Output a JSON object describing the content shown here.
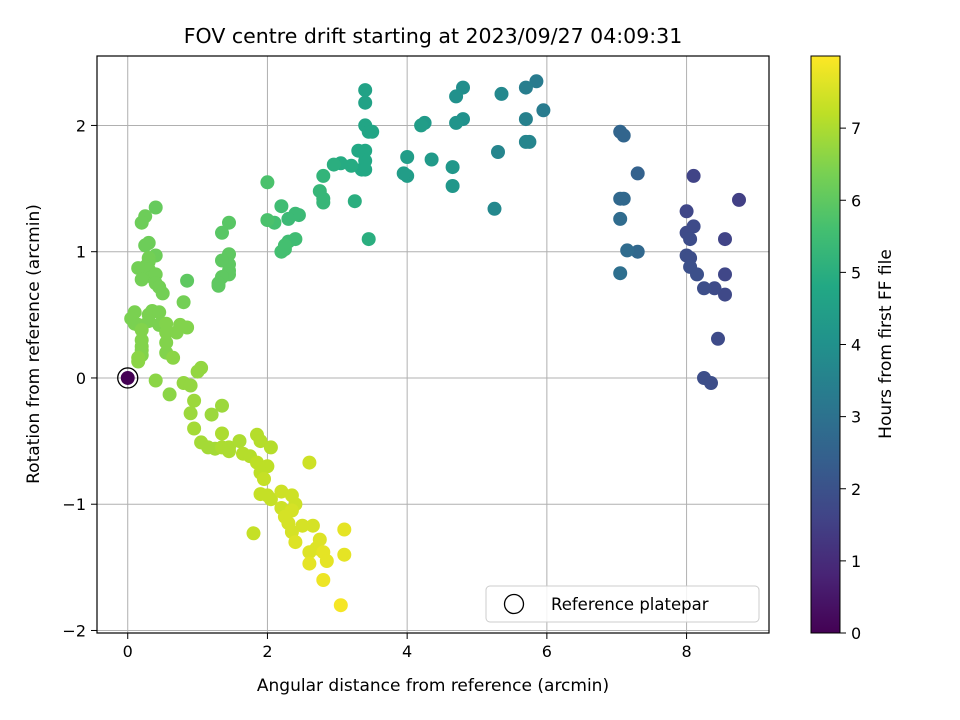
{
  "chart_data": {
    "type": "scatter",
    "title": "FOV centre drift starting at 2023/09/27 04:09:31",
    "xlabel": "Angular distance from reference (arcmin)",
    "ylabel": "Rotation from reference (arcmin)",
    "xlim": [
      -0.44,
      9.18
    ],
    "ylim": [
      -2.02,
      2.55
    ],
    "xticks": [
      {
        "value": 0,
        "label": "0"
      },
      {
        "value": 2,
        "label": "2"
      },
      {
        "value": 4,
        "label": "4"
      },
      {
        "value": 6,
        "label": "6"
      },
      {
        "value": 8,
        "label": "8"
      }
    ],
    "yticks": [
      {
        "value": 2,
        "label": "2"
      },
      {
        "value": 1,
        "label": "1"
      },
      {
        "value": 0,
        "label": "0"
      },
      {
        "value": -1,
        "label": "−1"
      },
      {
        "value": -2,
        "label": "−2"
      }
    ],
    "grid": true,
    "colormap": "viridis",
    "colorbar": {
      "label": "Hours from first FF file",
      "range": [
        0,
        8.0
      ],
      "ticks": [
        {
          "value": 0,
          "label": "0"
        },
        {
          "value": 1,
          "label": "1"
        },
        {
          "value": 2,
          "label": "2"
        },
        {
          "value": 3,
          "label": "3"
        },
        {
          "value": 4,
          "label": "4"
        },
        {
          "value": 5,
          "label": "5"
        },
        {
          "value": 6,
          "label": "6"
        },
        {
          "value": 7,
          "label": "7"
        }
      ]
    },
    "reference_point": {
      "x": 0,
      "y": 0,
      "label": "Reference platepar"
    },
    "legend": {
      "position": "lower-right",
      "entries": [
        "Reference platepar"
      ]
    },
    "points": [
      [
        0,
        0,
        0.0
      ],
      [
        8.75,
        1.41,
        1.5
      ],
      [
        8.1,
        1.6,
        1.6
      ],
      [
        8.0,
        1.32,
        1.7
      ],
      [
        8.1,
        1.2,
        1.8
      ],
      [
        8.0,
        1.15,
        1.8
      ],
      [
        8.05,
        1.1,
        1.85
      ],
      [
        8.55,
        1.1,
        1.6
      ],
      [
        8.0,
        0.97,
        1.9
      ],
      [
        8.05,
        0.95,
        1.9
      ],
      [
        8.05,
        0.88,
        1.95
      ],
      [
        8.15,
        0.82,
        1.95
      ],
      [
        8.55,
        0.82,
        1.7
      ],
      [
        8.25,
        0.71,
        1.9
      ],
      [
        8.4,
        0.71,
        1.8
      ],
      [
        8.55,
        0.66,
        1.75
      ],
      [
        8.45,
        0.31,
        1.8
      ],
      [
        8.25,
        0.0,
        1.9
      ],
      [
        8.35,
        -0.04,
        1.9
      ],
      [
        7.05,
        1.95,
        2.6
      ],
      [
        7.1,
        1.92,
        2.6
      ],
      [
        7.05,
        1.42,
        2.7
      ],
      [
        7.1,
        1.42,
        2.7
      ],
      [
        7.3,
        1.62,
        2.5
      ],
      [
        7.05,
        1.26,
        2.8
      ],
      [
        7.15,
        1.01,
        2.8
      ],
      [
        7.3,
        1.0,
        2.7
      ],
      [
        7.05,
        0.83,
        2.9
      ],
      [
        5.85,
        2.35,
        3.3
      ],
      [
        5.7,
        2.3,
        3.4
      ],
      [
        5.95,
        2.12,
        3.3
      ],
      [
        5.7,
        2.05,
        3.5
      ],
      [
        5.7,
        1.87,
        3.6
      ],
      [
        5.75,
        1.87,
        3.6
      ],
      [
        5.3,
        1.79,
        3.6
      ],
      [
        5.35,
        2.25,
        3.7
      ],
      [
        5.25,
        1.34,
        3.7
      ],
      [
        4.8,
        2.3,
        3.9
      ],
      [
        4.7,
        2.23,
        4.0
      ],
      [
        4.8,
        2.05,
        4.0
      ],
      [
        4.7,
        2.02,
        4.1
      ],
      [
        4.65,
        1.67,
        4.2
      ],
      [
        4.65,
        1.52,
        4.2
      ],
      [
        4.35,
        1.73,
        4.3
      ],
      [
        4.25,
        2.02,
        4.3
      ],
      [
        4.2,
        2.0,
        4.4
      ],
      [
        4.0,
        1.75,
        4.4
      ],
      [
        4.0,
        1.6,
        4.4
      ],
      [
        3.95,
        1.62,
        4.4
      ],
      [
        3.4,
        2.28,
        4.6
      ],
      [
        3.4,
        2.18,
        4.6
      ],
      [
        3.4,
        2.0,
        4.7
      ],
      [
        3.45,
        1.95,
        4.7
      ],
      [
        3.5,
        1.95,
        4.7
      ],
      [
        3.4,
        1.8,
        4.8
      ],
      [
        3.4,
        1.72,
        4.8
      ],
      [
        3.3,
        1.8,
        4.8
      ],
      [
        3.35,
        1.65,
        4.8
      ],
      [
        3.4,
        1.65,
        4.8
      ],
      [
        3.2,
        1.68,
        4.9
      ],
      [
        3.05,
        1.7,
        4.9
      ],
      [
        2.95,
        1.69,
        5.0
      ],
      [
        3.25,
        1.4,
        5.0
      ],
      [
        3.45,
        1.1,
        5.0
      ],
      [
        2.8,
        1.6,
        5.2
      ],
      [
        2.75,
        1.48,
        5.3
      ],
      [
        2.8,
        1.42,
        5.3
      ],
      [
        2.8,
        1.39,
        5.3
      ],
      [
        2.45,
        1.29,
        5.4
      ],
      [
        2.4,
        1.3,
        5.4
      ],
      [
        2.3,
        1.26,
        5.4
      ],
      [
        2.2,
        1.36,
        5.5
      ],
      [
        2.4,
        1.1,
        5.5
      ],
      [
        2.3,
        1.08,
        5.5
      ],
      [
        2.25,
        1.05,
        5.6
      ],
      [
        2.25,
        1.02,
        5.6
      ],
      [
        2.2,
        1.0,
        5.6
      ],
      [
        2.1,
        1.23,
        5.6
      ],
      [
        2.0,
        1.25,
        5.7
      ],
      [
        2.0,
        1.55,
        5.7
      ],
      [
        1.45,
        1.23,
        5.9
      ],
      [
        1.35,
        1.15,
        5.9
      ],
      [
        1.45,
        0.98,
        6.0
      ],
      [
        1.45,
        0.9,
        6.0
      ],
      [
        1.35,
        0.93,
        6.0
      ],
      [
        1.45,
        0.85,
        6.0
      ],
      [
        1.45,
        0.82,
        6.0
      ],
      [
        1.35,
        0.8,
        6.0
      ],
      [
        1.3,
        0.75,
        6.0
      ],
      [
        1.3,
        0.73,
        6.0
      ],
      [
        0.85,
        0.77,
        6.0
      ],
      [
        0.4,
        1.35,
        6.1
      ],
      [
        0.25,
        1.28,
        6.2
      ],
      [
        0.2,
        1.23,
        6.2
      ],
      [
        0.3,
        1.07,
        6.2
      ],
      [
        0.25,
        1.05,
        6.2
      ],
      [
        0.4,
        0.97,
        6.2
      ],
      [
        0.3,
        0.95,
        6.3
      ],
      [
        0.3,
        0.92,
        6.3
      ],
      [
        0.25,
        0.88,
        6.3
      ],
      [
        0.3,
        0.86,
        6.3
      ],
      [
        0.15,
        0.87,
        6.3
      ],
      [
        0.35,
        0.8,
        6.3
      ],
      [
        0.4,
        0.82,
        6.3
      ],
      [
        0.2,
        0.78,
        6.3
      ],
      [
        0.4,
        0.75,
        6.3
      ],
      [
        0.45,
        0.72,
        6.3
      ],
      [
        0.5,
        0.67,
        6.3
      ],
      [
        0.8,
        0.6,
        6.3
      ],
      [
        0.35,
        0.53,
        6.4
      ],
      [
        0.3,
        0.5,
        6.4
      ],
      [
        0.45,
        0.52,
        6.4
      ],
      [
        0.1,
        0.52,
        6.4
      ],
      [
        0.05,
        0.47,
        6.4
      ],
      [
        0.1,
        0.43,
        6.4
      ],
      [
        0.15,
        0.42,
        6.4
      ],
      [
        0.3,
        0.45,
        6.4
      ],
      [
        0.45,
        0.42,
        6.4
      ],
      [
        0.55,
        0.43,
        6.5
      ],
      [
        0.75,
        0.42,
        6.5
      ],
      [
        0.85,
        0.4,
        6.5
      ],
      [
        0.55,
        0.36,
        6.5
      ],
      [
        0.7,
        0.36,
        6.5
      ],
      [
        0.2,
        0.38,
        6.5
      ],
      [
        0.2,
        0.3,
        6.5
      ],
      [
        0.2,
        0.25,
        6.5
      ],
      [
        0.55,
        0.28,
        6.5
      ],
      [
        0.2,
        0.22,
        6.5
      ],
      [
        0.55,
        0.2,
        6.5
      ],
      [
        0.2,
        0.18,
        6.5
      ],
      [
        0.15,
        0.16,
        6.6
      ],
      [
        0.65,
        0.16,
        6.6
      ],
      [
        0.15,
        0.13,
        6.6
      ],
      [
        0.4,
        -0.02,
        6.6
      ],
      [
        0.6,
        -0.13,
        6.6
      ],
      [
        1.05,
        0.08,
        6.7
      ],
      [
        1.0,
        0.05,
        6.7
      ],
      [
        0.8,
        -0.04,
        6.7
      ],
      [
        0.9,
        -0.06,
        6.7
      ],
      [
        0.9,
        -0.28,
        6.8
      ],
      [
        0.95,
        -0.18,
        6.8
      ],
      [
        1.2,
        -0.29,
        6.8
      ],
      [
        1.35,
        -0.22,
        6.8
      ],
      [
        0.95,
        -0.4,
        6.9
      ],
      [
        1.05,
        -0.51,
        6.9
      ],
      [
        1.15,
        -0.55,
        6.9
      ],
      [
        1.25,
        -0.56,
        6.9
      ],
      [
        1.35,
        -0.55,
        7.0
      ],
      [
        1.35,
        -0.44,
        7.0
      ],
      [
        1.45,
        -0.55,
        7.0
      ],
      [
        1.45,
        -0.58,
        7.0
      ],
      [
        1.6,
        -0.5,
        7.0
      ],
      [
        1.65,
        -0.6,
        7.1
      ],
      [
        1.75,
        -0.62,
        7.1
      ],
      [
        1.85,
        -0.45,
        7.1
      ],
      [
        1.9,
        -0.5,
        7.1
      ],
      [
        2.05,
        -0.55,
        7.1
      ],
      [
        1.85,
        -0.67,
        7.2
      ],
      [
        2.0,
        -0.7,
        7.2
      ],
      [
        1.9,
        -0.75,
        7.2
      ],
      [
        1.95,
        -0.8,
        7.3
      ],
      [
        2.0,
        -0.93,
        7.3
      ],
      [
        1.9,
        -0.92,
        7.3
      ],
      [
        2.05,
        -0.96,
        7.3
      ],
      [
        1.8,
        -1.23,
        7.3
      ],
      [
        2.6,
        -0.67,
        7.4
      ],
      [
        2.2,
        -0.9,
        7.4
      ],
      [
        2.35,
        -0.93,
        7.4
      ],
      [
        2.4,
        -1.0,
        7.4
      ],
      [
        2.2,
        -1.03,
        7.4
      ],
      [
        2.35,
        -1.05,
        7.5
      ],
      [
        2.25,
        -1.1,
        7.5
      ],
      [
        2.3,
        -1.15,
        7.5
      ],
      [
        2.35,
        -1.22,
        7.5
      ],
      [
        2.5,
        -1.17,
        7.5
      ],
      [
        2.65,
        -1.17,
        7.5
      ],
      [
        2.4,
        -1.3,
        7.6
      ],
      [
        2.75,
        -1.28,
        7.6
      ],
      [
        2.7,
        -1.35,
        7.6
      ],
      [
        2.6,
        -1.38,
        7.6
      ],
      [
        2.8,
        -1.38,
        7.7
      ],
      [
        2.85,
        -1.45,
        7.7
      ],
      [
        2.6,
        -1.47,
        7.7
      ],
      [
        3.1,
        -1.2,
        7.7
      ],
      [
        3.1,
        -1.4,
        7.7
      ],
      [
        2.8,
        -1.6,
        7.8
      ],
      [
        3.05,
        -1.8,
        7.9
      ]
    ]
  }
}
